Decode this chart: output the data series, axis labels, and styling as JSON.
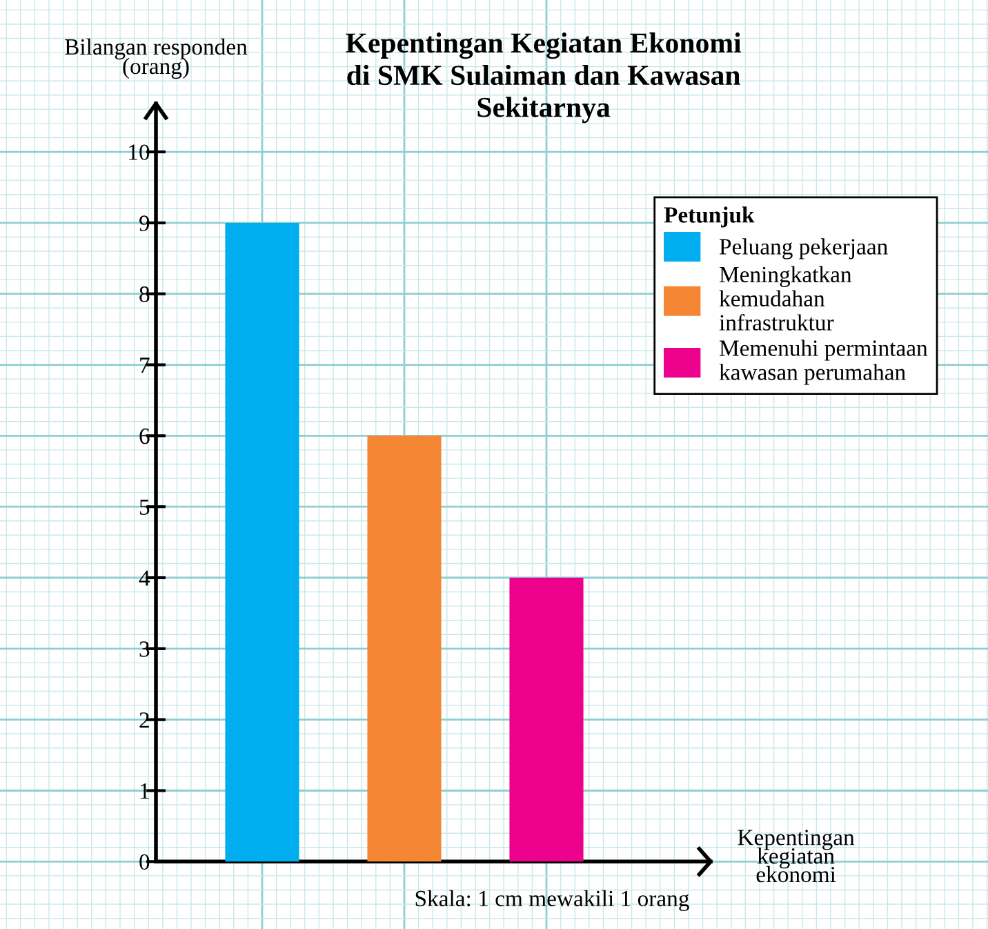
{
  "chart_data": {
    "type": "bar",
    "title": "Kepentingan Kegiatan Ekonomi\ndi SMK Sulaiman dan Kawasan\nSekitarnya",
    "xlabel": "Kepentingan\nkegiatan\nekonomi",
    "ylabel": "Bilangan responden\n(orang)",
    "legend_title": "Petunjuk",
    "categories": [
      null,
      null,
      null
    ],
    "series": [
      {
        "name": "Peluang pekerjaan",
        "color": "#00aeef",
        "values": [
          9,
          null,
          null
        ]
      },
      {
        "name": "Meningkatkan\nkemudahan\ninfrastruktur",
        "color": "#f58634",
        "values": [
          null,
          6,
          null
        ]
      },
      {
        "name": "Memenuhi permintaan\nkawasan perumahan",
        "color": "#ec008c",
        "values": [
          null,
          null,
          4
        ]
      }
    ],
    "stacked": true,
    "ylim": [
      -0.95,
      12.14
    ],
    "yticks": [
      0,
      1,
      2,
      3,
      4,
      5,
      6,
      7,
      8,
      9,
      10
    ],
    "grid": true,
    "legend": "top right",
    "annotations": [
      "Skala: 1 cm mewakili 1 orang"
    ]
  }
}
